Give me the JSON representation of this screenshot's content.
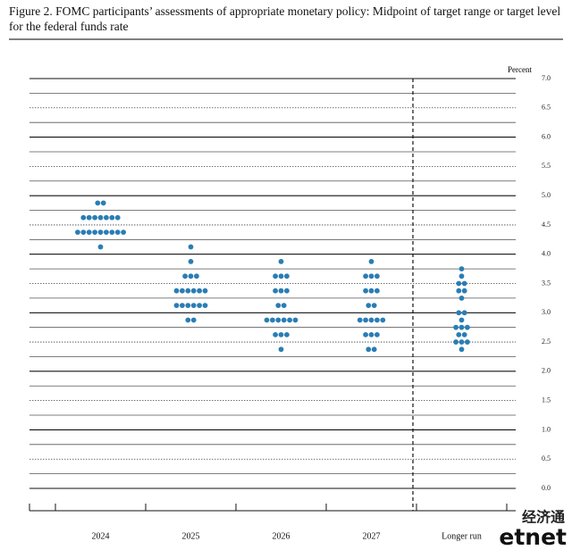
{
  "chart_data": {
    "type": "dot",
    "title": "Figure 2.  FOMC participants’ assessments of appropriate monetary policy:  Midpoint of target range or target level for the federal funds rate",
    "y_label": "Percent",
    "categories": [
      "2024",
      "2025",
      "2026",
      "2027",
      "Longer run"
    ],
    "values": [
      [
        4.875,
        4.875,
        4.625,
        4.625,
        4.625,
        4.625,
        4.625,
        4.625,
        4.625,
        4.375,
        4.375,
        4.375,
        4.375,
        4.375,
        4.375,
        4.375,
        4.375,
        4.375,
        4.125
      ],
      [
        4.125,
        3.875,
        3.625,
        3.625,
        3.625,
        3.375,
        3.375,
        3.375,
        3.375,
        3.375,
        3.375,
        3.125,
        3.125,
        3.125,
        3.125,
        3.125,
        3.125,
        2.875,
        2.875
      ],
      [
        3.875,
        3.625,
        3.625,
        3.625,
        3.375,
        3.375,
        3.375,
        3.125,
        3.125,
        2.875,
        2.875,
        2.875,
        2.875,
        2.875,
        2.875,
        2.625,
        2.625,
        2.625,
        2.375
      ],
      [
        3.875,
        3.625,
        3.625,
        3.625,
        3.375,
        3.375,
        3.375,
        3.125,
        3.125,
        2.875,
        2.875,
        2.875,
        2.875,
        2.875,
        2.625,
        2.625,
        2.625,
        2.375,
        2.375
      ],
      [
        3.75,
        3.625,
        3.5,
        3.5,
        3.375,
        3.375,
        3.25,
        3.0,
        3.0,
        2.875,
        2.75,
        2.75,
        2.75,
        2.625,
        2.625,
        2.5,
        2.5,
        2.5,
        2.375
      ]
    ],
    "color": "#2a7db4",
    "ylim": [
      0,
      7
    ],
    "yticks": [
      {
        "value": 0,
        "label": "0.0"
      },
      {
        "value": 0.5,
        "label": "0.5"
      },
      {
        "value": 1,
        "label": "1.0"
      },
      {
        "value": 1.5,
        "label": "1.5"
      },
      {
        "value": 2,
        "label": "2.0"
      },
      {
        "value": 2.5,
        "label": "2.5"
      },
      {
        "value": 3,
        "label": "3.0"
      },
      {
        "value": 3.5,
        "label": "3.5"
      },
      {
        "value": 4,
        "label": "4.0"
      },
      {
        "value": 4.5,
        "label": "4.5"
      },
      {
        "value": 5,
        "label": "5.0"
      },
      {
        "value": 5.5,
        "label": "5.5"
      },
      {
        "value": 6,
        "label": "6.0"
      },
      {
        "value": 6.5,
        "label": "6.5"
      },
      {
        "value": 7,
        "label": "7.0"
      }
    ],
    "grid": true,
    "watermark": [
      "经济通",
      "etnet"
    ]
  }
}
